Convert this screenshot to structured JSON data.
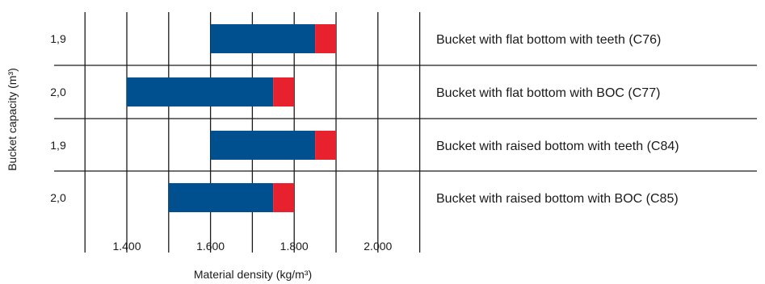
{
  "chart_data": {
    "type": "bar",
    "orientation": "horizontal",
    "stacked": true,
    "xlabel": "Material density (kg/m³)",
    "ylabel": "Bucket capacity (m³)",
    "x_ticks": [
      {
        "value": 1400,
        "label": "1.400"
      },
      {
        "value": 1600,
        "label": "1.600"
      },
      {
        "value": 1800,
        "label": "1.800"
      },
      {
        "value": 2000,
        "label": "2.000"
      }
    ],
    "xlim": [
      1300,
      2100
    ],
    "grid": true,
    "colors": {
      "main": "#00508f",
      "extension": "#e8212e",
      "grid": "#1a1a1a"
    },
    "rows": [
      {
        "capacity": "1,9",
        "label": "Bucket with flat bottom with teeth (C76)",
        "start": 1600,
        "main_end": 1850,
        "end": 1900
      },
      {
        "capacity": "2,0",
        "label": "Bucket with flat bottom with BOC (C77)",
        "start": 1400,
        "main_end": 1750,
        "end": 1800
      },
      {
        "capacity": "1,9",
        "label": "Bucket with raised bottom with teeth (C84)",
        "start": 1600,
        "main_end": 1850,
        "end": 1900
      },
      {
        "capacity": "2,0",
        "label": "Bucket with raised bottom with BOC (C85)",
        "start": 1500,
        "main_end": 1750,
        "end": 1800
      }
    ]
  }
}
